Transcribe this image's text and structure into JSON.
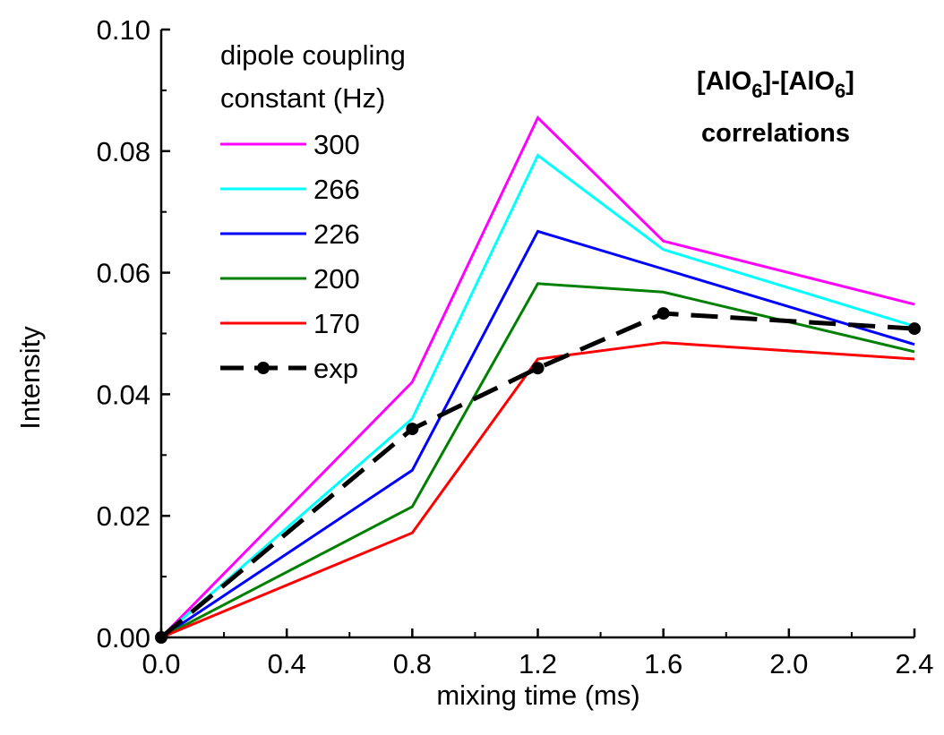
{
  "chart_data": {
    "type": "line",
    "title": "",
    "xlabel": "mixing time (ms)",
    "ylabel": "Intensity",
    "xlim": [
      0.0,
      2.4
    ],
    "ylim": [
      0.0,
      0.1
    ],
    "x": [
      0.0,
      0.8,
      1.2,
      1.6,
      2.4
    ],
    "xticks": [
      0.0,
      0.4,
      0.8,
      1.2,
      1.6,
      2.0,
      2.4
    ],
    "xtick_labels": [
      "0.0",
      "0.4",
      "0.8",
      "1.2",
      "1.6",
      "2.0",
      "2.4"
    ],
    "yticks": [
      0.0,
      0.02,
      0.04,
      0.06,
      0.08,
      0.1
    ],
    "ytick_labels": [
      "0.00",
      "0.02",
      "0.04",
      "0.06",
      "0.08",
      "0.10"
    ],
    "grid": false,
    "legend_placement": "top-left",
    "legend_title_lines": [
      "dipole coupling",
      "constant (Hz)"
    ],
    "annotation": {
      "line1_parts": [
        "[AlO",
        "6",
        "]-[AlO",
        "6",
        "]"
      ],
      "line2": "correlations"
    },
    "series": [
      {
        "name": "300",
        "color": "#ff00ff",
        "style": "solid",
        "values": [
          0.0,
          0.042,
          0.0855,
          0.0652,
          0.0548
        ]
      },
      {
        "name": "266",
        "color": "#00ffff",
        "style": "solid",
        "values": [
          0.0,
          0.036,
          0.0793,
          0.0638,
          0.0512
        ]
      },
      {
        "name": "226",
        "color": "#0000ff",
        "style": "solid",
        "values": [
          0.0,
          0.0275,
          0.0668,
          0.0606,
          0.0482
        ]
      },
      {
        "name": "200",
        "color": "#008000",
        "style": "solid",
        "values": [
          0.0,
          0.0215,
          0.0582,
          0.0568,
          0.047
        ]
      },
      {
        "name": "170",
        "color": "#ff0000",
        "style": "solid",
        "values": [
          0.0,
          0.0172,
          0.0458,
          0.0485,
          0.0458
        ]
      },
      {
        "name": "exp",
        "color": "#000000",
        "style": "dashed-markers",
        "values": [
          0.0,
          0.0343,
          0.0443,
          0.0533,
          0.0508
        ]
      }
    ]
  }
}
